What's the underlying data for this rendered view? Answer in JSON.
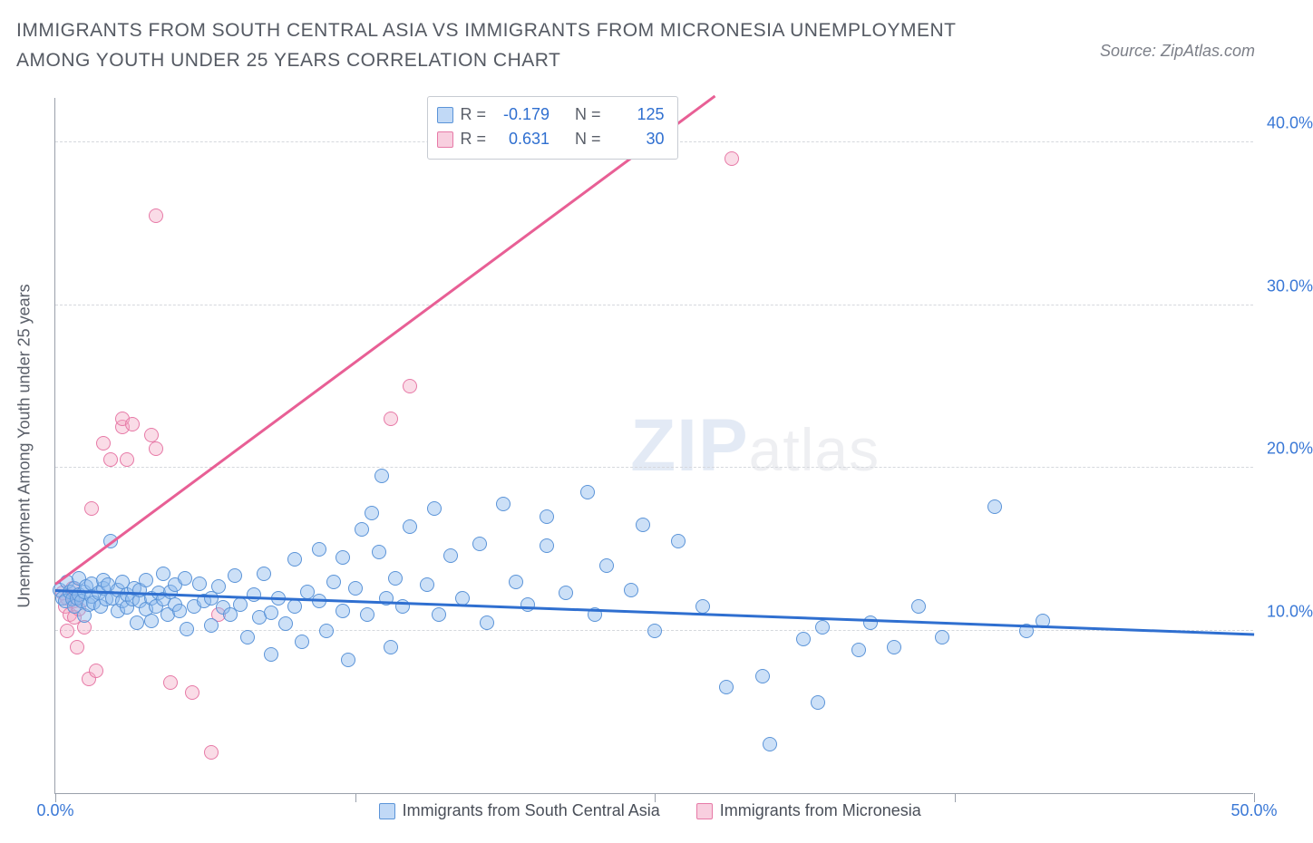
{
  "title": "IMMIGRANTS FROM SOUTH CENTRAL ASIA VS IMMIGRANTS FROM MICRONESIA UNEMPLOYMENT AMONG YOUTH UNDER 25 YEARS CORRELATION CHART",
  "source_label": "Source: ZipAtlas.com",
  "ylabel": "Unemployment Among Youth under 25 years",
  "watermark_z": "ZIP",
  "watermark_rest": "atlas",
  "chart": {
    "type": "scatter",
    "background_color": "#ffffff",
    "grid_color": "#d5d8dd",
    "axis_color": "#9aa0ab",
    "xlim": [
      0,
      50
    ],
    "ylim": [
      0,
      42.8
    ],
    "ytick_positions": [
      10,
      20,
      30,
      40
    ],
    "ytick_labels": [
      "10.0%",
      "20.0%",
      "30.0%",
      "40.0%"
    ],
    "xtick_positions": [
      0,
      12.5,
      25,
      37.5,
      50
    ],
    "xtick_labels": [
      "0.0%",
      "",
      "",
      "",
      "50.0%"
    ],
    "series": {
      "blue": {
        "label": "Immigrants from South Central Asia",
        "marker_fill": "rgba(142,186,238,0.45)",
        "marker_stroke": "#5b94d8",
        "trend_color": "#2f6fd0",
        "R": "-0.179",
        "N": "125",
        "trend": {
          "x1": 0,
          "y1": 12.4,
          "x2": 50,
          "y2": 9.7
        },
        "points": [
          [
            0.2,
            12.5
          ],
          [
            0.3,
            12.0
          ],
          [
            0.4,
            11.8
          ],
          [
            0.5,
            13.0
          ],
          [
            0.6,
            12.4
          ],
          [
            0.7,
            11.9
          ],
          [
            0.8,
            12.6
          ],
          [
            0.8,
            11.5
          ],
          [
            0.9,
            12.0
          ],
          [
            1.0,
            13.2
          ],
          [
            1.0,
            12.2
          ],
          [
            1.1,
            11.8
          ],
          [
            1.2,
            12.4
          ],
          [
            1.2,
            10.9
          ],
          [
            1.3,
            12.7
          ],
          [
            1.4,
            11.6
          ],
          [
            1.5,
            12.9
          ],
          [
            1.5,
            12.1
          ],
          [
            1.6,
            11.7
          ],
          [
            1.8,
            12.3
          ],
          [
            1.9,
            11.5
          ],
          [
            2.0,
            12.6
          ],
          [
            2.0,
            13.1
          ],
          [
            2.1,
            11.9
          ],
          [
            2.2,
            12.8
          ],
          [
            2.3,
            15.5
          ],
          [
            2.4,
            12.0
          ],
          [
            2.6,
            11.2
          ],
          [
            2.6,
            12.5
          ],
          [
            2.8,
            11.8
          ],
          [
            2.8,
            13.0
          ],
          [
            3.0,
            11.4
          ],
          [
            3.0,
            12.2
          ],
          [
            3.2,
            11.9
          ],
          [
            3.3,
            12.6
          ],
          [
            3.4,
            10.5
          ],
          [
            3.5,
            11.8
          ],
          [
            3.5,
            12.5
          ],
          [
            3.8,
            11.3
          ],
          [
            3.8,
            13.1
          ],
          [
            4.0,
            12.0
          ],
          [
            4.0,
            10.6
          ],
          [
            4.2,
            11.5
          ],
          [
            4.3,
            12.3
          ],
          [
            4.5,
            11.9
          ],
          [
            4.5,
            13.5
          ],
          [
            4.7,
            11.0
          ],
          [
            4.8,
            12.4
          ],
          [
            5.0,
            11.6
          ],
          [
            5.0,
            12.8
          ],
          [
            5.2,
            11.2
          ],
          [
            5.4,
            13.2
          ],
          [
            5.5,
            10.1
          ],
          [
            5.8,
            11.5
          ],
          [
            6.0,
            12.9
          ],
          [
            6.2,
            11.8
          ],
          [
            6.5,
            12.0
          ],
          [
            6.5,
            10.3
          ],
          [
            7.0,
            11.4
          ],
          [
            6.8,
            12.7
          ],
          [
            7.3,
            11.0
          ],
          [
            7.5,
            13.4
          ],
          [
            7.7,
            11.6
          ],
          [
            8.0,
            9.6
          ],
          [
            8.3,
            12.2
          ],
          [
            8.5,
            10.8
          ],
          [
            8.7,
            13.5
          ],
          [
            9.0,
            11.1
          ],
          [
            9.0,
            8.5
          ],
          [
            9.3,
            12.0
          ],
          [
            9.6,
            10.4
          ],
          [
            10.0,
            14.4
          ],
          [
            10.0,
            11.5
          ],
          [
            10.3,
            9.3
          ],
          [
            10.5,
            12.4
          ],
          [
            11.0,
            15.0
          ],
          [
            11.0,
            11.8
          ],
          [
            11.3,
            10.0
          ],
          [
            11.6,
            13.0
          ],
          [
            12.0,
            14.5
          ],
          [
            12.0,
            11.2
          ],
          [
            12.2,
            8.2
          ],
          [
            12.5,
            12.6
          ],
          [
            12.8,
            16.2
          ],
          [
            13.0,
            11.0
          ],
          [
            13.2,
            17.2
          ],
          [
            13.5,
            14.8
          ],
          [
            13.6,
            19.5
          ],
          [
            13.8,
            12.0
          ],
          [
            14.0,
            9.0
          ],
          [
            14.2,
            13.2
          ],
          [
            14.5,
            11.5
          ],
          [
            14.8,
            16.4
          ],
          [
            15.5,
            12.8
          ],
          [
            15.8,
            17.5
          ],
          [
            16.0,
            11.0
          ],
          [
            16.5,
            14.6
          ],
          [
            17.0,
            12.0
          ],
          [
            17.7,
            15.3
          ],
          [
            18.0,
            10.5
          ],
          [
            18.7,
            17.8
          ],
          [
            19.2,
            13.0
          ],
          [
            19.7,
            11.6
          ],
          [
            20.5,
            15.2
          ],
          [
            20.5,
            17.0
          ],
          [
            21.3,
            12.3
          ],
          [
            22.2,
            18.5
          ],
          [
            22.5,
            11.0
          ],
          [
            23.0,
            14.0
          ],
          [
            24.0,
            12.5
          ],
          [
            24.5,
            16.5
          ],
          [
            25.0,
            10.0
          ],
          [
            26.0,
            15.5
          ],
          [
            27.0,
            11.5
          ],
          [
            28.0,
            6.5
          ],
          [
            29.5,
            7.2
          ],
          [
            29.8,
            3.0
          ],
          [
            31.2,
            9.5
          ],
          [
            31.8,
            5.6
          ],
          [
            32.0,
            10.2
          ],
          [
            33.5,
            8.8
          ],
          [
            34.0,
            10.5
          ],
          [
            35.0,
            9.0
          ],
          [
            36.0,
            11.5
          ],
          [
            37.0,
            9.6
          ],
          [
            39.2,
            17.6
          ],
          [
            40.5,
            10.0
          ],
          [
            41.2,
            10.6
          ]
        ]
      },
      "pink": {
        "label": "Immigrants from Micronesia",
        "marker_fill": "rgba(242,168,196,0.40)",
        "marker_stroke": "#e77aa7",
        "trend_color": "#e85f95",
        "R": "0.631",
        "N": "30",
        "trend": {
          "x1": 0,
          "y1": 12.8,
          "x2": 27.5,
          "y2": 42.8
        },
        "points": [
          [
            0.3,
            12.3
          ],
          [
            0.4,
            11.5
          ],
          [
            0.5,
            10.0
          ],
          [
            0.5,
            12.0
          ],
          [
            0.6,
            11.0
          ],
          [
            0.7,
            12.6
          ],
          [
            0.8,
            10.8
          ],
          [
            0.8,
            11.8
          ],
          [
            0.9,
            9.0
          ],
          [
            1.0,
            11.3
          ],
          [
            1.2,
            10.2
          ],
          [
            1.4,
            7.0
          ],
          [
            1.5,
            17.5
          ],
          [
            1.7,
            7.5
          ],
          [
            2.0,
            21.5
          ],
          [
            2.3,
            20.5
          ],
          [
            2.8,
            22.5
          ],
          [
            2.8,
            23.0
          ],
          [
            3.0,
            20.5
          ],
          [
            3.2,
            22.7
          ],
          [
            4.0,
            22.0
          ],
          [
            4.2,
            21.2
          ],
          [
            4.2,
            35.5
          ],
          [
            4.8,
            6.8
          ],
          [
            5.7,
            6.2
          ],
          [
            6.5,
            2.5
          ],
          [
            6.8,
            11.0
          ],
          [
            14.0,
            23.0
          ],
          [
            14.8,
            25.0
          ],
          [
            28.2,
            39.0
          ]
        ]
      }
    }
  },
  "stats_header": {
    "R": "R = ",
    "N": "N = "
  },
  "legend": {
    "blue": "Immigrants from South Central Asia",
    "pink": "Immigrants from Micronesia"
  }
}
